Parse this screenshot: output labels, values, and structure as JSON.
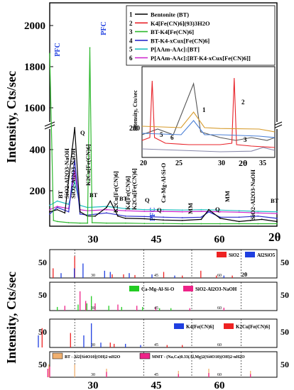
{
  "main": {
    "ylabel": "Intensity, Cts/sec",
    "xlabel": "2θ",
    "y_ticks_upper": [
      "2000",
      "1800",
      "1600"
    ],
    "y_ticks_lower": [
      "400",
      "200"
    ],
    "x_ticks": [
      "30",
      "45",
      "60"
    ],
    "pfc_labels": [
      "PFC",
      "PFC",
      "PFC"
    ],
    "peak_labels": [
      {
        "text": "BT"
      },
      {
        "text": "SiO2-Al2O3-NaOH"
      },
      {
        "text": "SiO2-Al2O3-NaOH"
      },
      {
        "text": "Q"
      },
      {
        "text": "K2Cu[Fe(CN)6]"
      },
      {
        "text": "BT"
      },
      {
        "text": "K2Cu[Fe(CN)6]"
      },
      {
        "text": "BT"
      },
      {
        "text": "K4[Fe(CN)6]"
      },
      {
        "text": "K2Cu[Fe(CN)6]"
      },
      {
        "text": "Q"
      },
      {
        "text": "Ca-Mg-Al-Si-O"
      },
      {
        "text": "Q"
      },
      {
        "text": "MM"
      },
      {
        "text": "Q"
      },
      {
        "text": "MM"
      },
      {
        "text": "SiO2-Al2O3-NaOH"
      },
      {
        "text": "BT"
      }
    ]
  },
  "legend": [
    {
      "num": "1",
      "label": "Bentonite (BT)",
      "color": "#000000"
    },
    {
      "num": "2",
      "label": "K4[Fe(CN)6](93)3H2O",
      "color": "#e8232a"
    },
    {
      "num": "3",
      "label": "BT-K4[Fe(CN)6]",
      "color": "#2eb82e"
    },
    {
      "num": "4",
      "label": "BT-K4-xCux[Fe(CN)6]",
      "color": "#2c2ccc"
    },
    {
      "num": "5",
      "label": "P[AAm-AAc]:[BT]",
      "color": "#20c0c0"
    },
    {
      "num": "6",
      "label": "P[AAm-AAc]:[BT-K4-xCux[Fe(CN)6]]",
      "color": "#cc22cc"
    }
  ],
  "inset": {
    "ylabel": "Intensity, Cts/sec",
    "xlabel": "2θ",
    "y_tick": "200",
    "x_ticks": [
      "20",
      "25",
      "30",
      "35"
    ],
    "curve_labels": [
      "1",
      "2",
      "3",
      "5",
      "6"
    ],
    "colors": {
      "c1": "#555555",
      "c2": "#e8232a",
      "c5": "#d69a2a",
      "c6": "#4a7fd6",
      "c3": "#8888aa",
      "bg": "#d89420"
    }
  },
  "references": {
    "shared_ylabel": "Intensity, Cts/sec",
    "xlabel": "2θ",
    "x_ticks": [
      "30",
      "45",
      "60"
    ],
    "panels": [
      {
        "tick": "50",
        "legend": [
          {
            "label": "SiO2",
            "color": "#ee2222"
          },
          {
            "label": "Al2SiO5",
            "color": "#1f3fe0"
          }
        ]
      },
      {
        "tick": "50",
        "legend": [
          {
            "label": "Ca-Mg-Al-Si-O",
            "color": "#22cc22"
          },
          {
            "label": "SiO2-Al2O3-NaOH",
            "color": "#ee2288"
          }
        ]
      },
      {
        "tick": "50",
        "legend": [
          {
            "label": "K4[Fe(CN)6]",
            "color": "#1f3fe0"
          },
          {
            "label": "K2Cu[Fe(CN)6]",
            "color": "#ee2222"
          }
        ]
      },
      {
        "tick": "50",
        "legend": [
          {
            "label": "BT - Al2[Si4O10](OH)2·nH2O",
            "color": "#f0b070"
          },
          {
            "label": "MMT - (Na,Ca)0.33(Al,Mg)2(Si4O10)(OH)2·nH2O",
            "color": "#ee2288"
          }
        ]
      }
    ]
  },
  "chart_data": [
    {
      "type": "line",
      "title": "",
      "xlabel": "2θ",
      "ylabel": "Intensity, Cts/sec",
      "xlim": [
        20,
        80
      ],
      "axis_break": true,
      "ylim_lower": [
        0,
        450
      ],
      "ylim_upper": [
        1500,
        2100
      ],
      "series": [
        {
          "name": "Bentonite (BT)",
          "x": [
            20,
            22,
            24,
            26.6,
            28,
            30,
            32,
            35,
            36,
            38,
            40,
            45,
            50,
            55,
            60,
            62,
            65,
            70,
            73,
            76,
            80
          ],
          "y": [
            60,
            70,
            55,
            450,
            60,
            40,
            40,
            80,
            110,
            40,
            30,
            28,
            22,
            20,
            25,
            70,
            30,
            15,
            20,
            25,
            15
          ]
        },
        {
          "name": "BT-K4[Fe(CN)6]",
          "x": [
            20,
            21,
            22,
            25,
            28,
            30,
            30.6,
            31.2,
            35,
            40,
            45,
            50,
            55,
            60,
            65,
            70,
            75,
            80
          ],
          "y": [
            1850,
            20,
            15,
            10,
            8,
            8,
            1880,
            10,
            8,
            8,
            6,
            6,
            5,
            5,
            5,
            5,
            5,
            5
          ]
        },
        {
          "name": "BT-K4-xCux[Fe(CN)6]",
          "x": [
            20,
            22,
            25,
            26.6,
            28,
            30,
            35,
            40,
            45,
            50,
            55,
            60,
            62,
            65,
            70,
            75,
            80
          ],
          "y": [
            50,
            80,
            60,
            300,
            50,
            45,
            55,
            40,
            38,
            35,
            33,
            35,
            60,
            35,
            35,
            40,
            30
          ]
        },
        {
          "name": "P[AAm-AAc]:[BT]",
          "x": [
            20,
            22,
            25,
            26.6,
            28,
            30,
            35,
            40,
            45,
            50,
            55,
            60,
            65,
            70,
            75,
            80
          ],
          "y": [
            90,
            110,
            95,
            200,
            90,
            80,
            85,
            75,
            70,
            70,
            68,
            70,
            68,
            65,
            62,
            60
          ]
        },
        {
          "name": "P[AAm-AAc]:[BT-K4-xCux[Fe(CN)6]]",
          "x": [
            20,
            22,
            25,
            26.6,
            28,
            30,
            35,
            40,
            45,
            50,
            55,
            60,
            65,
            70,
            75,
            80
          ],
          "y": [
            70,
            85,
            75,
            250,
            70,
            65,
            70,
            65,
            62,
            62,
            60,
            62,
            60,
            58,
            55,
            52
          ]
        }
      ]
    },
    {
      "type": "line",
      "title": "",
      "xlabel": "2θ",
      "ylabel": "Intensity, Cts/sec",
      "xlim": [
        20,
        37
      ],
      "series": [
        {
          "name": "1",
          "x": [
            20,
            22,
            24,
            26.6,
            27.5,
            30,
            32,
            34,
            36,
            37
          ],
          "y": [
            150,
            170,
            150,
            330,
            160,
            140,
            130,
            140,
            130,
            140
          ]
        },
        {
          "name": "2",
          "x": [
            20,
            21,
            21.3,
            21.6,
            23,
            26,
            30,
            31.5,
            31.8,
            32.1,
            34,
            37
          ],
          "y": [
            130,
            140,
            340,
            140,
            120,
            115,
            115,
            120,
            350,
            115,
            110,
            105
          ]
        },
        {
          "name": "3",
          "x": [
            20,
            25,
            30,
            34,
            35.5,
            37
          ],
          "y": [
            100,
            95,
            90,
            92,
            105,
            95
          ]
        },
        {
          "name": "5",
          "x": [
            20,
            25,
            26.6,
            28,
            30,
            35,
            37
          ],
          "y": [
            180,
            175,
            230,
            175,
            172,
            170,
            160
          ]
        },
        {
          "name": "6",
          "x": [
            20,
            25,
            26.6,
            28,
            30,
            35,
            37
          ],
          "y": [
            155,
            150,
            200,
            150,
            150,
            145,
            140
          ]
        }
      ]
    },
    {
      "type": "bar",
      "title": "",
      "xlabel": "2θ",
      "series": [
        {
          "name": "SiO2",
          "x": [
            20.9,
            26.6,
            36.5,
            39.5,
            42.5,
            50.1,
            55,
            59.9,
            64,
            68.2
          ],
          "y": [
            40,
            90,
            15,
            15,
            12,
            25,
            10,
            30,
            10,
            10
          ]
        },
        {
          "name": "Al2SiO5",
          "x": [
            23,
            26.5,
            28.8,
            34.5,
            36,
            41,
            47,
            53,
            66
          ],
          "y": [
            20,
            40,
            60,
            30,
            25,
            20,
            15,
            10,
            10
          ]
        }
      ]
    },
    {
      "type": "bar",
      "title": "",
      "xlabel": "2θ",
      "series": [
        {
          "name": "Ca-Mg-Al-Si-O",
          "x": [
            22,
            27.5,
            29.8,
            31,
            35.6,
            39,
            44.5,
            49,
            52
          ],
          "y": [
            15,
            25,
            30,
            60,
            20,
            15,
            15,
            10,
            10
          ]
        },
        {
          "name": "SiO2-Al2O3-NaOH",
          "x": [
            24,
            28,
            29.5,
            32,
            38,
            43,
            48,
            57,
            66
          ],
          "y": [
            20,
            80,
            40,
            30,
            25,
            20,
            15,
            10,
            12
          ]
        }
      ]
    },
    {
      "type": "bar",
      "title": "",
      "xlabel": "2θ",
      "series": [
        {
          "name": "K4[Fe(CN)6]",
          "x": [
            17,
            29,
            31,
            33.5,
            40,
            44
          ],
          "y": [
            50,
            50,
            100,
            20,
            15,
            10
          ]
        },
        {
          "name": "K2Cu[Fe(CN)6]",
          "x": [
            18,
            25.5,
            36,
            37,
            51,
            55
          ],
          "y": [
            80,
            60,
            20,
            15,
            10,
            10
          ]
        }
      ]
    },
    {
      "type": "bar",
      "title": "",
      "xlabel": "2θ",
      "series": [
        {
          "name": "BT - Al2[Si4O10](OH)2·nH2O",
          "x": [
            19.8,
            26.6,
            35,
            54,
            62,
            73
          ],
          "y": [
            60,
            60,
            40,
            30,
            40,
            30
          ]
        },
        {
          "name": "MMT - (Na,Ca)0.33(Al,Mg)2(Si4O10)(OH)2·nH2O",
          "x": [
            19.5,
            20,
            35,
            54,
            62,
            73
          ],
          "y": [
            40,
            50,
            25,
            15,
            20,
            15
          ]
        }
      ]
    }
  ]
}
